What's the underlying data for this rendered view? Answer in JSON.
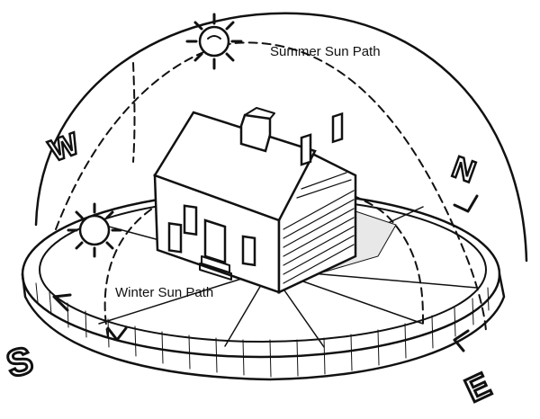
{
  "diagram": {
    "labels": {
      "summer": "Summer Sun Path",
      "winter": "Winter Sun Path"
    },
    "compass": {
      "north": "N",
      "south": "S",
      "east": "E",
      "west": "W"
    },
    "icons": {
      "summer_sun": "sun-icon",
      "winter_sun": "sun-icon"
    },
    "colors": {
      "ink": "#111111",
      "background": "#ffffff"
    }
  }
}
